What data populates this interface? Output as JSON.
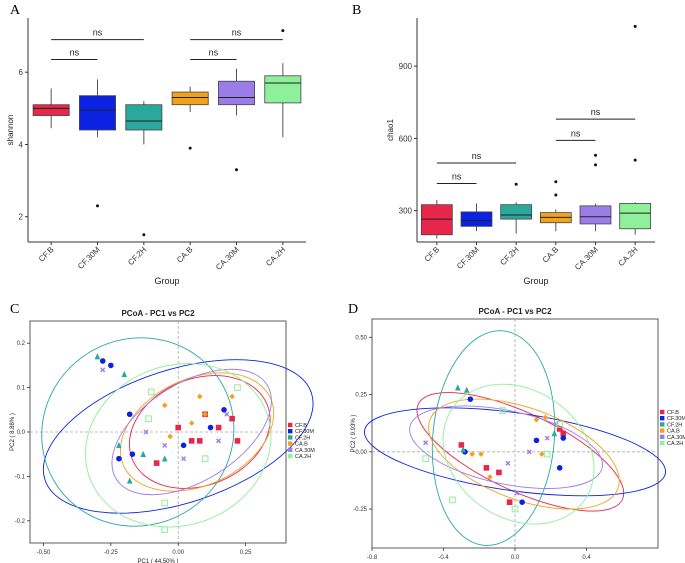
{
  "figure": {
    "colors": {
      "CF.B": "#e8264a",
      "CF.30M": "#0b22e3",
      "CF.2H": "#2ba89c",
      "CA.B": "#f0a21f",
      "CA.30M": "#9b7de8",
      "CA.2H": "#8ef09a"
    }
  },
  "chart_data": [
    {
      "type": "box",
      "panel": "A",
      "xlabel": "Group",
      "ylabel": "shannon",
      "yticks": [
        2,
        4,
        6
      ],
      "ylim": [
        1.3,
        7.5
      ],
      "categories": [
        "CF.B",
        "CF.30M",
        "CF.2H",
        "CA.B",
        "CA.30M",
        "CA.2H"
      ],
      "boxes": [
        {
          "group": "CF.B",
          "whislo": 4.45,
          "q1": 4.8,
          "med": 5.0,
          "q3": 5.1,
          "whishi": 5.55,
          "fliers": []
        },
        {
          "group": "CF.30M",
          "whislo": 4.2,
          "q1": 4.4,
          "med": 4.95,
          "q3": 5.35,
          "whishi": 5.8,
          "fliers": [
            2.3
          ]
        },
        {
          "group": "CF.2H",
          "whislo": 4.0,
          "q1": 4.4,
          "med": 4.65,
          "q3": 5.1,
          "whishi": 5.2,
          "fliers": [
            1.5
          ]
        },
        {
          "group": "CA.B",
          "whislo": 4.9,
          "q1": 5.1,
          "med": 5.3,
          "q3": 5.45,
          "whishi": 5.6,
          "fliers": [
            3.9
          ]
        },
        {
          "group": "CA.30M",
          "whislo": 4.8,
          "q1": 5.1,
          "med": 5.3,
          "q3": 5.75,
          "whishi": 6.1,
          "fliers": [
            3.3
          ]
        },
        {
          "group": "CA.2H",
          "whislo": 4.2,
          "q1": 5.15,
          "med": 5.7,
          "q3": 5.9,
          "whishi": 6.25,
          "fliers": [
            7.15
          ]
        }
      ],
      "annotations": [
        {
          "label": "ns",
          "from": "CF.B",
          "to": "CF.2H",
          "y": 6.9
        },
        {
          "label": "ns",
          "from": "CF.B",
          "to": "CF.30M",
          "y": 6.35
        },
        {
          "label": "ns",
          "from": "CA.B",
          "to": "CA.2H",
          "y": 6.9
        },
        {
          "label": "ns",
          "from": "CA.B",
          "to": "CA.30M",
          "y": 6.35
        }
      ]
    },
    {
      "type": "box",
      "panel": "B",
      "xlabel": "Group",
      "ylabel": "chao1",
      "yticks": [
        300,
        600,
        900
      ],
      "ylim": [
        170,
        1100
      ],
      "categories": [
        "CF.B",
        "CF.30M",
        "CF.2H",
        "CA.B",
        "CA.30M",
        "CA.2H"
      ],
      "boxes": [
        {
          "group": "CF.B",
          "whislo": 185,
          "q1": 200,
          "med": 265,
          "q3": 325,
          "whishi": 345,
          "fliers": []
        },
        {
          "group": "CF.30M",
          "whislo": 215,
          "q1": 235,
          "med": 260,
          "q3": 295,
          "whishi": 330,
          "fliers": []
        },
        {
          "group": "CF.2H",
          "whislo": 205,
          "q1": 265,
          "med": 282,
          "q3": 325,
          "whishi": 335,
          "fliers": [
            410
          ]
        },
        {
          "group": "CA.B",
          "whislo": 215,
          "q1": 250,
          "med": 272,
          "q3": 292,
          "whishi": 305,
          "fliers": [
            365,
            420
          ]
        },
        {
          "group": "CA.30M",
          "whislo": 215,
          "q1": 245,
          "med": 275,
          "q3": 320,
          "whishi": 330,
          "fliers": [
            490,
            530
          ]
        },
        {
          "group": "CA.2H",
          "whislo": 200,
          "q1": 225,
          "med": 290,
          "q3": 330,
          "whishi": 335,
          "fliers": [
            510,
            1065
          ]
        }
      ],
      "annotations": [
        {
          "label": "ns",
          "from": "CF.B",
          "to": "CF.2H",
          "y": 498
        },
        {
          "label": "ns",
          "from": "CF.B",
          "to": "CF.30M",
          "y": 413
        },
        {
          "label": "ns",
          "from": "CA.B",
          "to": "CA.2H",
          "y": 680
        },
        {
          "label": "ns",
          "from": "CA.B",
          "to": "CA.30M",
          "y": 592
        }
      ]
    },
    {
      "type": "scatter",
      "panel": "C",
      "title": "PCoA - PC1 vs PC2",
      "xlabel": "PC1 ( 44.50% )",
      "ylabel": "PC2 ( 8.88% )",
      "xlim": [
        -0.55,
        0.4
      ],
      "ylim": [
        -0.25,
        0.25
      ],
      "xticks": [
        -0.5,
        -0.25,
        0.0,
        0.25
      ],
      "yticks": [
        -0.2,
        -0.1,
        0.0,
        0.1,
        0.2
      ],
      "xtick_labels": [
        "-0.50",
        "-0.25",
        "0.00",
        "0.25"
      ],
      "ytick_labels": [
        "-0.2",
        "-0.1",
        "0.0",
        "0.1",
        "0.2"
      ],
      "legend": [
        "CF.B",
        "CF.30M",
        "CF.2H",
        "CA.B",
        "CA.30M",
        "CA.2H"
      ],
      "series": [
        {
          "name": "CF.B",
          "shape": "square",
          "points": [
            [
              0.0,
              0.01
            ],
            [
              0.05,
              -0.02
            ],
            [
              0.1,
              0.04
            ],
            [
              0.2,
              0.03
            ],
            [
              0.22,
              -0.02
            ],
            [
              -0.08,
              -0.07
            ],
            [
              0.08,
              -0.02
            ],
            [
              0.15,
              0.01
            ]
          ]
        },
        {
          "name": "CF.30M",
          "shape": "circle",
          "points": [
            [
              -0.28,
              0.16
            ],
            [
              -0.25,
              0.15
            ],
            [
              -0.17,
              -0.05
            ],
            [
              -0.22,
              -0.06
            ],
            [
              0.02,
              -0.03
            ],
            [
              0.17,
              0.05
            ],
            [
              0.12,
              0.01
            ],
            [
              -0.18,
              0.04
            ]
          ]
        },
        {
          "name": "CF.2H",
          "shape": "triangle",
          "points": [
            [
              -0.3,
              0.17
            ],
            [
              -0.2,
              0.13
            ],
            [
              -0.22,
              -0.03
            ],
            [
              -0.13,
              -0.05
            ],
            [
              -0.18,
              -0.11
            ],
            [
              -0.05,
              -0.06
            ]
          ]
        },
        {
          "name": "CA.B",
          "shape": "diamond",
          "points": [
            [
              -0.05,
              0.06
            ],
            [
              0.08,
              0.08
            ],
            [
              0.1,
              0.04
            ],
            [
              0.2,
              0.08
            ],
            [
              -0.03,
              -0.01
            ],
            [
              0.05,
              0.02
            ]
          ]
        },
        {
          "name": "CA.30M",
          "shape": "cross",
          "points": [
            [
              -0.28,
              0.14
            ],
            [
              -0.05,
              -0.03
            ],
            [
              0.02,
              -0.06
            ],
            [
              0.15,
              -0.02
            ],
            [
              0.18,
              0.04
            ],
            [
              -0.12,
              0.0
            ]
          ]
        },
        {
          "name": "CA.2H",
          "shape": "square-open",
          "points": [
            [
              -0.05,
              -0.16
            ],
            [
              -0.11,
              0.03
            ],
            [
              -0.1,
              0.09
            ],
            [
              0.22,
              0.1
            ],
            [
              -0.05,
              -0.22
            ],
            [
              0.1,
              -0.06
            ]
          ]
        }
      ],
      "ellipses": [
        {
          "name": "CF.B",
          "cx": 0.08,
          "cy": 0.0,
          "rx": 0.27,
          "ry": 0.12,
          "rot": -22
        },
        {
          "name": "CF.30M",
          "cx": 0.0,
          "cy": -0.01,
          "rx": 0.52,
          "ry": 0.15,
          "rot": -18
        },
        {
          "name": "CF.2H",
          "cx": -0.15,
          "cy": 0.0,
          "rx": 0.36,
          "ry": 0.21,
          "rot": -30
        },
        {
          "name": "CA.B",
          "cx": 0.07,
          "cy": 0.0,
          "rx": 0.3,
          "ry": 0.12,
          "rot": -25
        },
        {
          "name": "CA.30M",
          "cx": 0.05,
          "cy": 0.0,
          "rx": 0.33,
          "ry": 0.11,
          "rot": -32
        },
        {
          "name": "CA.2H",
          "cx": 0.0,
          "cy": -0.03,
          "rx": 0.35,
          "ry": 0.18,
          "rot": -20
        }
      ]
    },
    {
      "type": "scatter",
      "panel": "D",
      "title": "PCoA - PC1 vs PC2",
      "xlabel": "PC1 ( 25.14% )",
      "ylabel": "PC2 ( 9.93% )",
      "xlim": [
        -0.8,
        0.8
      ],
      "ylim": [
        -0.42,
        0.58
      ],
      "xticks": [
        -0.8,
        -0.4,
        0.0,
        0.4
      ],
      "yticks": [
        -0.25,
        0.0,
        0.25,
        0.5
      ],
      "xtick_labels": [
        "-0.8",
        "-0.4",
        "0.0",
        "0.4"
      ],
      "ytick_labels": [
        "-0.25",
        "0.00",
        "0.25",
        "0.50"
      ],
      "legend": [
        "CF.B",
        "CF.30M",
        "CF.2H",
        "CA.B",
        "CA.30M",
        "CA.2H"
      ],
      "series": [
        {
          "name": "CF.B",
          "shape": "square",
          "points": [
            [
              0.25,
              0.1
            ],
            [
              0.27,
              0.08
            ],
            [
              -0.3,
              0.03
            ],
            [
              -0.16,
              -0.07
            ],
            [
              -0.03,
              -0.22
            ],
            [
              -0.09,
              -0.09
            ]
          ]
        },
        {
          "name": "CF.30M",
          "shape": "circle",
          "points": [
            [
              -0.25,
              0.23
            ],
            [
              0.27,
              0.06
            ],
            [
              0.12,
              0.05
            ],
            [
              0.25,
              -0.07
            ],
            [
              -0.28,
              0.0
            ],
            [
              0.04,
              -0.22
            ]
          ]
        },
        {
          "name": "CF.2H",
          "shape": "triangle",
          "points": [
            [
              -0.32,
              0.28
            ],
            [
              -0.27,
              0.27
            ],
            [
              -0.29,
              0.01
            ],
            [
              0.22,
              0.08
            ]
          ]
        },
        {
          "name": "CA.B",
          "shape": "diamond",
          "points": [
            [
              0.12,
              0.14
            ],
            [
              0.17,
              0.15
            ],
            [
              -0.24,
              -0.01
            ],
            [
              -0.19,
              -0.01
            ],
            [
              -0.14,
              -0.11
            ],
            [
              0.15,
              -0.01
            ]
          ]
        },
        {
          "name": "CA.30M",
          "shape": "cross",
          "points": [
            [
              -0.5,
              0.04
            ],
            [
              0.01,
              -0.18
            ],
            [
              0.18,
              0.06
            ],
            [
              0.08,
              0.0
            ],
            [
              -0.04,
              -0.05
            ],
            [
              0.23,
              0.12
            ]
          ]
        },
        {
          "name": "CA.2H",
          "shape": "square-open",
          "points": [
            [
              0.25,
              0.12
            ],
            [
              -0.5,
              -0.03
            ],
            [
              0.0,
              -0.25
            ],
            [
              -0.35,
              -0.21
            ],
            [
              0.18,
              -0.01
            ],
            [
              -0.07,
              0.18
            ]
          ]
        }
      ],
      "ellipses": [
        {
          "name": "CF.B",
          "cx": 0.03,
          "cy": 0.0,
          "rx": 0.63,
          "ry": 0.17,
          "rot": 25
        },
        {
          "name": "CF.30M",
          "cx": 0.0,
          "cy": 0.0,
          "rx": 0.85,
          "ry": 0.17,
          "rot": 8
        },
        {
          "name": "CF.2H",
          "cx": -0.12,
          "cy": 0.06,
          "rx": 0.34,
          "ry": 0.47,
          "rot": 5
        },
        {
          "name": "CA.B",
          "cx": 0.05,
          "cy": -0.01,
          "rx": 0.56,
          "ry": 0.2,
          "rot": 20
        },
        {
          "name": "CA.30M",
          "cx": -0.05,
          "cy": 0.02,
          "rx": 0.55,
          "ry": 0.16,
          "rot": 12
        },
        {
          "name": "CA.2H",
          "cx": 0.02,
          "cy": -0.01,
          "rx": 0.45,
          "ry": 0.28,
          "rot": 35
        }
      ]
    }
  ]
}
